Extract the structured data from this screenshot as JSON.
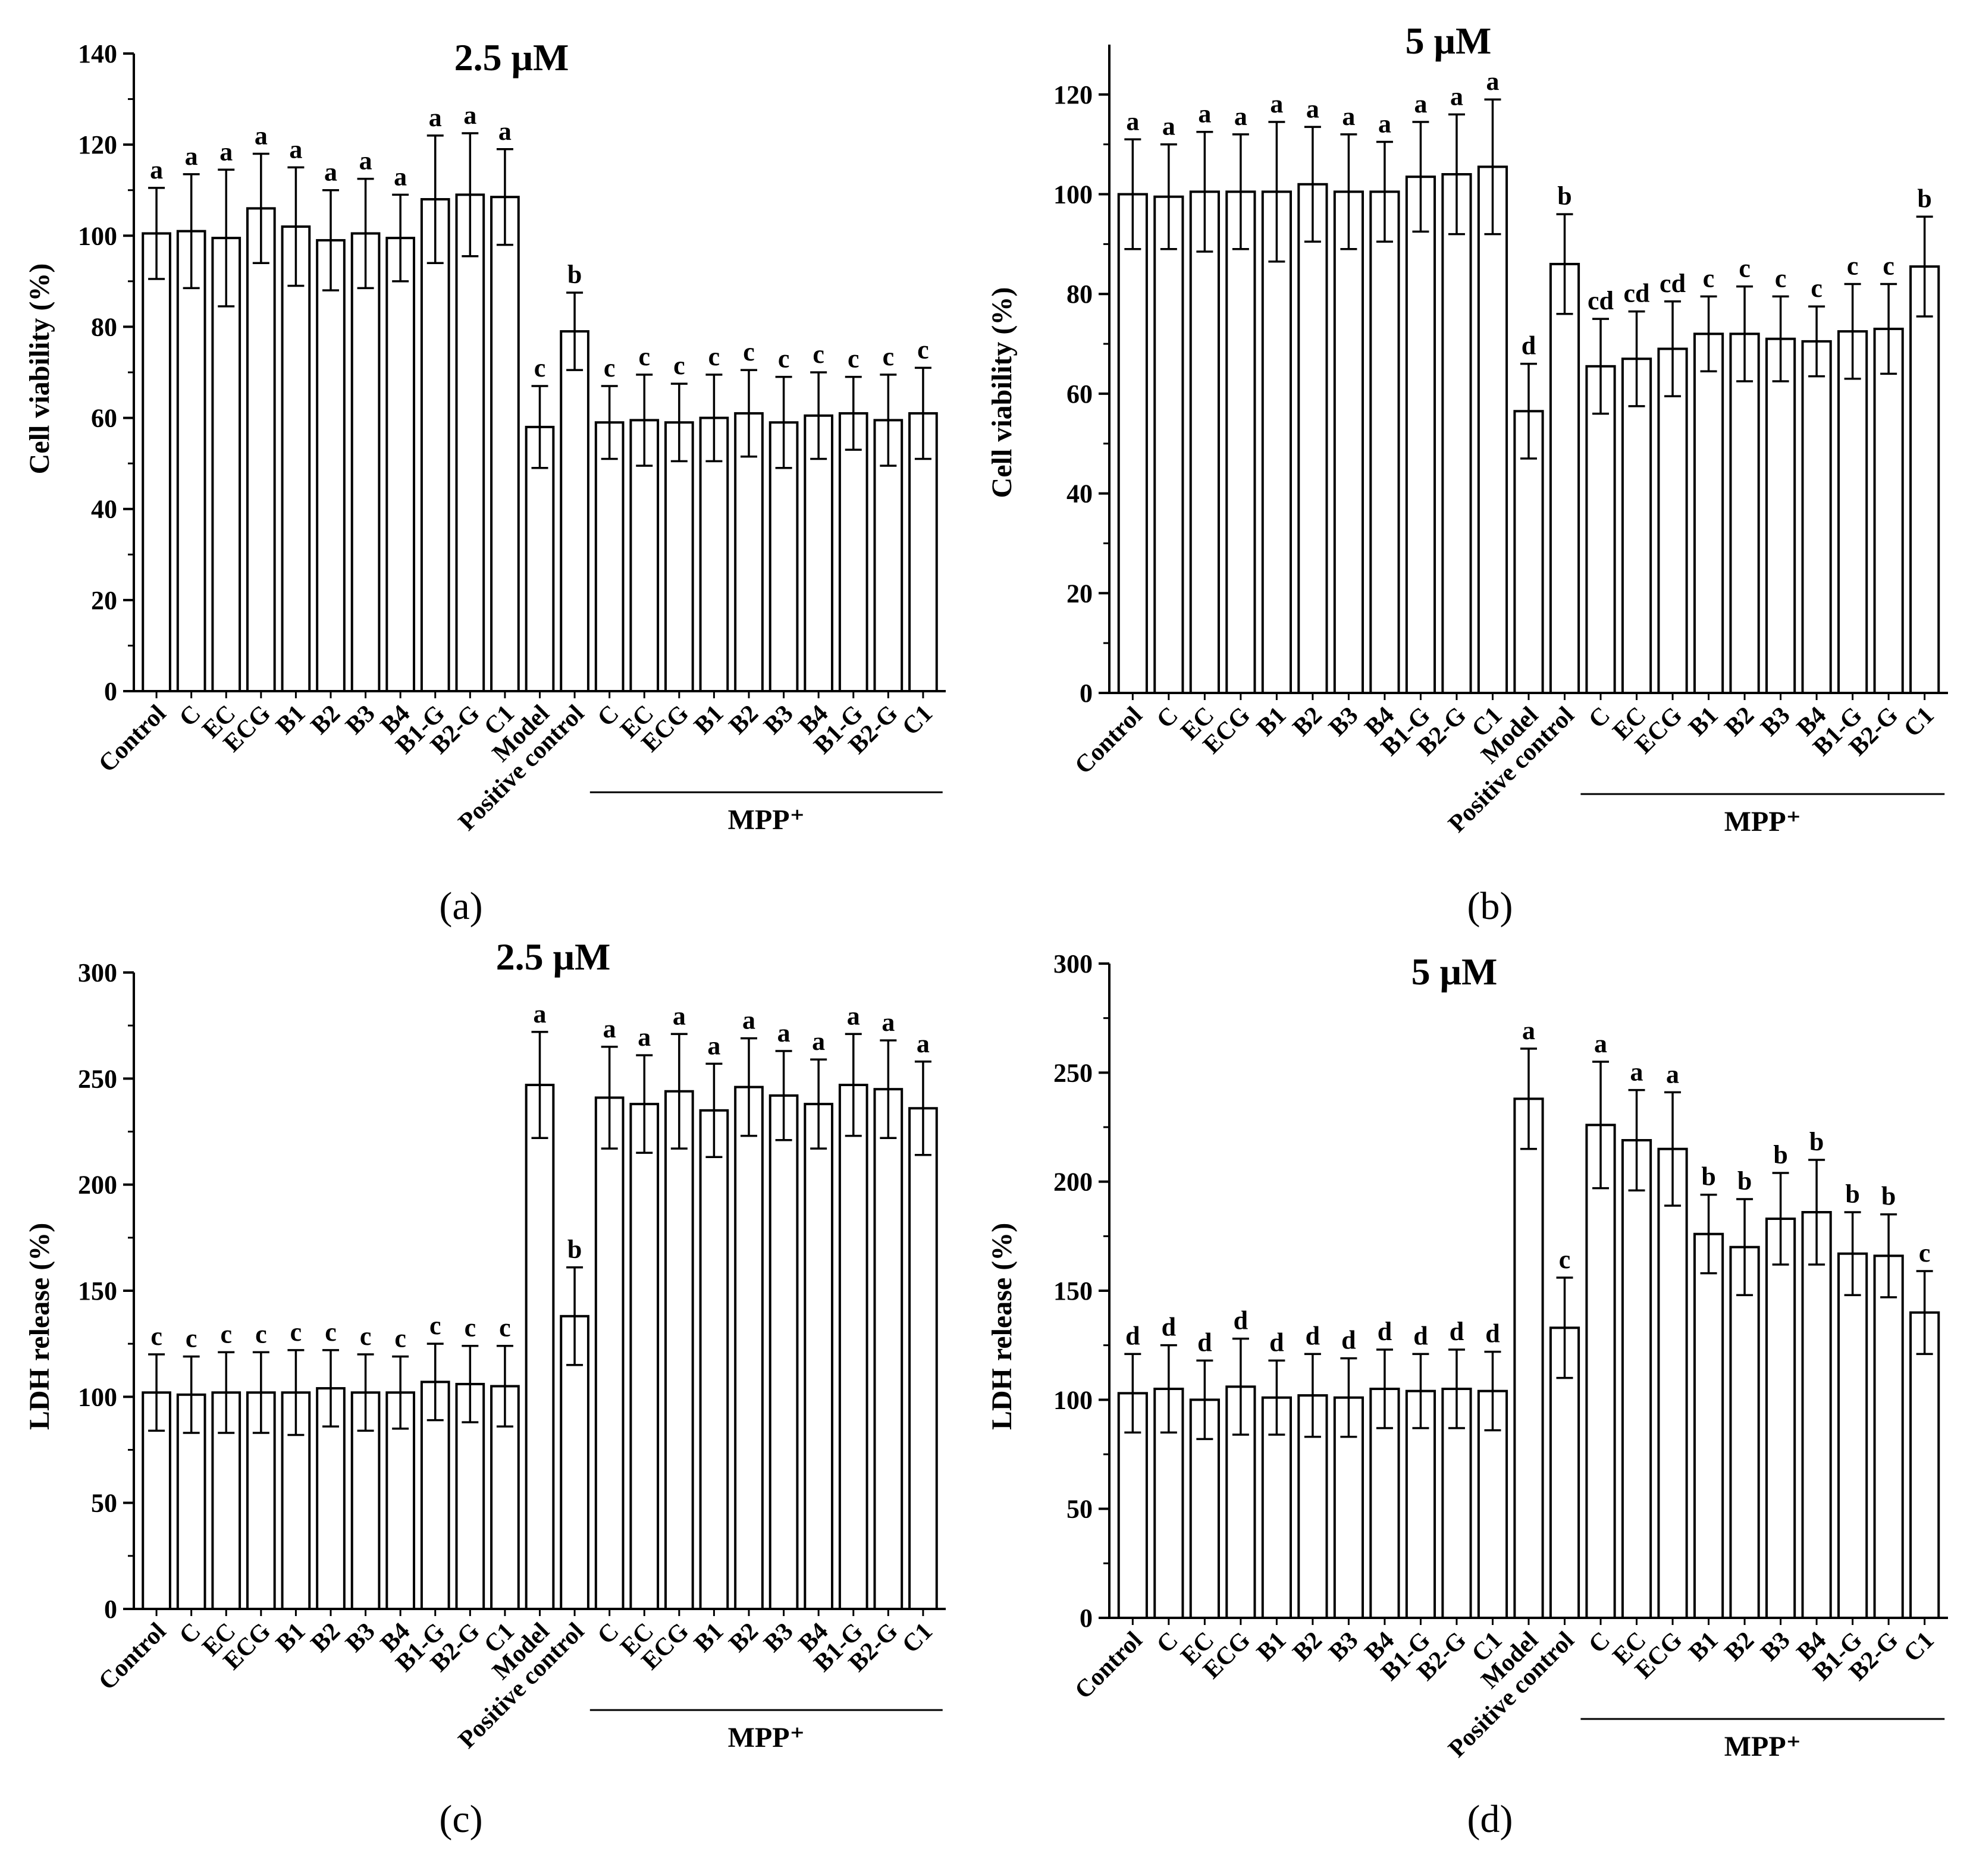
{
  "figure": {
    "background": "#ffffff",
    "bar_fill": "#ffffff",
    "stroke": "#000000"
  },
  "chart_data": [
    {
      "type": "bar",
      "panel_label": "(a)",
      "title": "2.5 μM",
      "xlabel": "",
      "ylabel": "Cell viability (%)",
      "ylim": [
        0,
        140
      ],
      "y_ticks": [
        0,
        20,
        40,
        60,
        80,
        100,
        120,
        140
      ],
      "group_label": "MPP⁺",
      "group_start": 13,
      "group_end": 22,
      "categories": [
        "Control",
        "C",
        "EC",
        "ECG",
        "B1",
        "B2",
        "B3",
        "B4",
        "B1-G",
        "B2-G",
        "C1",
        "Model",
        "Positive control",
        "C",
        "EC",
        "ECG",
        "B1",
        "B2",
        "B3",
        "B4",
        "B1-G",
        "B2-G",
        "C1"
      ],
      "values": [
        100.5,
        101,
        99.5,
        106,
        102,
        99,
        100.5,
        99.5,
        108,
        109,
        108.5,
        58,
        79,
        59,
        59.5,
        59,
        60,
        61,
        59,
        60.5,
        61,
        59.5,
        61
      ],
      "errors": [
        10,
        12.5,
        15,
        12,
        13,
        11,
        12,
        9.5,
        14,
        13.5,
        10.5,
        9,
        8.5,
        8,
        10,
        8.5,
        9.5,
        9.5,
        10,
        9.5,
        8,
        10,
        10
      ],
      "significance": [
        "a",
        "a",
        "a",
        "a",
        "a",
        "a",
        "a",
        "a",
        "a",
        "a",
        "a",
        "c",
        "b",
        "c",
        "c",
        "c",
        "c",
        "c",
        "c",
        "c",
        "c",
        "c",
        "c"
      ]
    },
    {
      "type": "bar",
      "panel_label": "(b)",
      "title": "5 μM",
      "xlabel": "",
      "ylabel": "Cell viability (%)",
      "ylim": [
        0,
        130
      ],
      "y_ticks": [
        0,
        20,
        40,
        60,
        80,
        100,
        120
      ],
      "group_label": "MPP⁺",
      "group_start": 13,
      "group_end": 22,
      "categories": [
        "Control",
        "C",
        "EC",
        "ECG",
        "B1",
        "B2",
        "B3",
        "B4",
        "B1-G",
        "B2-G",
        "C1",
        "Model",
        "Positive control",
        "C",
        "EC",
        "ECG",
        "B1",
        "B2",
        "B3",
        "B4",
        "B1-G",
        "B2-G",
        "C1"
      ],
      "values": [
        100,
        99.5,
        100.5,
        100.5,
        100.5,
        102,
        100.5,
        100.5,
        103.5,
        104,
        105.5,
        56.5,
        86,
        65.5,
        67,
        69,
        72,
        72,
        71,
        70.5,
        72.5,
        73,
        85.5
      ],
      "errors": [
        11,
        10.5,
        12,
        11.5,
        14,
        11.5,
        11.5,
        10,
        11,
        12,
        13.5,
        9.5,
        10,
        9.5,
        9.5,
        9.5,
        7.5,
        9.5,
        8.5,
        7,
        9.5,
        9,
        10
      ],
      "significance": [
        "a",
        "a",
        "a",
        "a",
        "a",
        "a",
        "a",
        "a",
        "a",
        "a",
        "a",
        "d",
        "b",
        "cd",
        "cd",
        "cd",
        "c",
        "c",
        "c",
        "c",
        "c",
        "c",
        "b"
      ]
    },
    {
      "type": "bar",
      "panel_label": "(c)",
      "title": "2.5 μM",
      "xlabel": "",
      "ylabel": "LDH release (%)",
      "ylim": [
        0,
        300
      ],
      "y_ticks": [
        0,
        50,
        100,
        150,
        200,
        250,
        300
      ],
      "group_label": "MPP⁺",
      "group_start": 13,
      "group_end": 22,
      "categories": [
        "Control",
        "C",
        "EC",
        "ECG",
        "B1",
        "B2",
        "B3",
        "B4",
        "B1-G",
        "B2-G",
        "C1",
        "Model",
        "Positive control",
        "C",
        "EC",
        "ECG",
        "B1",
        "B2",
        "B3",
        "B4",
        "B1-G",
        "B2-G",
        "C1"
      ],
      "values": [
        102,
        101,
        102,
        102,
        102,
        104,
        102,
        102,
        107,
        106,
        105,
        247,
        138,
        241,
        238,
        244,
        235,
        246,
        242,
        238,
        247,
        245,
        236
      ],
      "errors": [
        18,
        18,
        19,
        19,
        20,
        18,
        18,
        17,
        18,
        18,
        19,
        25,
        23,
        24,
        23,
        27,
        22,
        23,
        21,
        21,
        24,
        23,
        22
      ],
      "significance": [
        "c",
        "c",
        "c",
        "c",
        "c",
        "c",
        "c",
        "c",
        "c",
        "c",
        "c",
        "a",
        "b",
        "a",
        "a",
        "a",
        "a",
        "a",
        "a",
        "a",
        "a",
        "a",
        "a"
      ]
    },
    {
      "type": "bar",
      "panel_label": "(d)",
      "title": "5 μM",
      "xlabel": "",
      "ylabel": "LDH release (%)",
      "ylim": [
        0,
        300
      ],
      "y_ticks": [
        0,
        50,
        100,
        150,
        200,
        250,
        300
      ],
      "group_label": "MPP⁺",
      "group_start": 13,
      "group_end": 22,
      "categories": [
        "Control",
        "C",
        "EC",
        "ECG",
        "B1",
        "B2",
        "B3",
        "B4",
        "B1-G",
        "B2-G",
        "C1",
        "Model",
        "Positive control",
        "C",
        "EC",
        "ECG",
        "B1",
        "B2",
        "B3",
        "B4",
        "B1-G",
        "B2-G",
        "C1"
      ],
      "values": [
        103,
        105,
        100,
        106,
        101,
        102,
        101,
        105,
        104,
        105,
        104,
        238,
        133,
        226,
        219,
        215,
        176,
        170,
        183,
        186,
        167,
        166,
        140
      ],
      "errors": [
        18,
        20,
        18,
        22,
        17,
        19,
        18,
        18,
        17,
        18,
        18,
        23,
        23,
        29,
        23,
        26,
        18,
        22,
        21,
        24,
        19,
        19,
        19
      ],
      "significance": [
        "d",
        "d",
        "d",
        "d",
        "d",
        "d",
        "d",
        "d",
        "d",
        "d",
        "d",
        "a",
        "c",
        "a",
        "a",
        "a",
        "b",
        "b",
        "b",
        "b",
        "b",
        "b",
        "c"
      ]
    }
  ]
}
